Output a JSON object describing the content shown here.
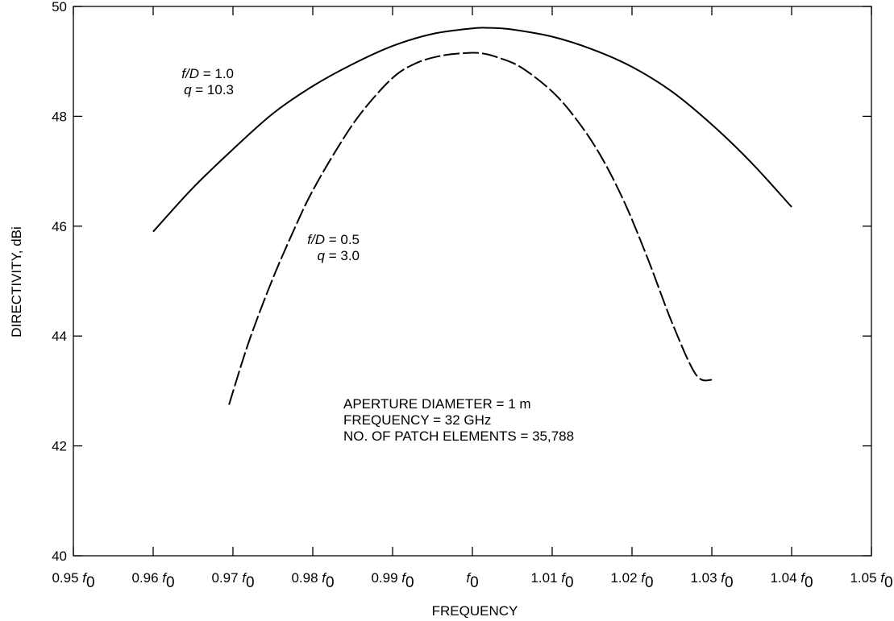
{
  "chart_data": {
    "type": "line",
    "xlabel": "FREQUENCY",
    "ylabel": "DIRECTIVITY, dBi",
    "xlim": [
      0.95,
      1.05
    ],
    "ylim": [
      40,
      50
    ],
    "grid": false,
    "x_ticks": [
      {
        "value": 0.95,
        "prefix": "0.95 "
      },
      {
        "value": 0.96,
        "prefix": "0.96 "
      },
      {
        "value": 0.97,
        "prefix": "0.97 "
      },
      {
        "value": 0.98,
        "prefix": "0.98 "
      },
      {
        "value": 0.99,
        "prefix": "0.99 "
      },
      {
        "value": 1.0,
        "prefix": ""
      },
      {
        "value": 1.01,
        "prefix": "1.01 "
      },
      {
        "value": 1.02,
        "prefix": "1.02 "
      },
      {
        "value": 1.03,
        "prefix": "1.03 "
      },
      {
        "value": 1.04,
        "prefix": "1.04 "
      },
      {
        "value": 1.05,
        "prefix": "1.05 "
      }
    ],
    "x_tick_symbol": "f",
    "x_tick_subscript": "0",
    "y_ticks": [
      40,
      42,
      44,
      46,
      48,
      50
    ],
    "series": [
      {
        "style": "solid",
        "x": [
          0.96,
          0.965,
          0.97,
          0.975,
          0.98,
          0.985,
          0.99,
          0.995,
          1.0,
          1.002,
          1.005,
          1.01,
          1.015,
          1.02,
          1.025,
          1.03,
          1.035,
          1.04
        ],
        "y": [
          45.9,
          46.7,
          47.4,
          48.05,
          48.55,
          48.95,
          49.28,
          49.5,
          49.6,
          49.61,
          49.58,
          49.45,
          49.22,
          48.9,
          48.45,
          47.85,
          47.15,
          46.35
        ],
        "annotation": {
          "line1_italic": "f/D",
          "line1_rest": " =  1.0",
          "line2_italic": "q",
          "line2_rest": " = 10.3"
        }
      },
      {
        "style": "dashed",
        "x": [
          0.9695,
          0.972,
          0.975,
          0.978,
          0.98,
          0.983,
          0.986,
          0.99,
          0.993,
          0.996,
          0.999,
          1.001,
          1.003,
          1.006,
          1.01,
          1.013,
          1.016,
          1.019,
          1.022,
          1.025,
          1.028,
          1.03
        ],
        "y": [
          42.75,
          43.9,
          45.05,
          46.05,
          46.65,
          47.4,
          48.05,
          48.7,
          48.97,
          49.1,
          49.15,
          49.15,
          49.08,
          48.9,
          48.45,
          47.95,
          47.3,
          46.45,
          45.4,
          44.25,
          43.3,
          43.2
        ],
        "annotation": {
          "line1_italic": "f/D",
          "line1_rest": " = 0.5",
          "line2_italic": "q",
          "line2_rest": " = 3.0"
        }
      }
    ],
    "notes": [
      "APERTURE DIAMETER = 1 m",
      "FREQUENCY = 32 GHz",
      "NO. OF PATCH ELEMENTS = 35,788"
    ]
  }
}
